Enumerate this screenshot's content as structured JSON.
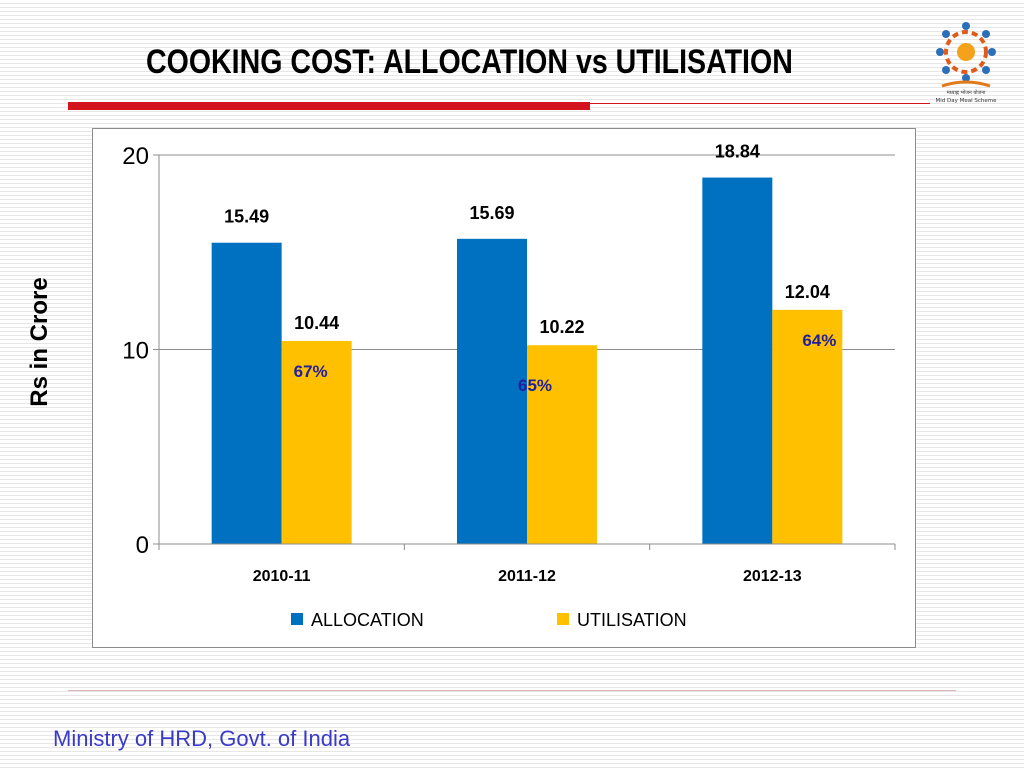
{
  "slide": {
    "title": "COOKING COST: ALLOCATION vs UTILISATION",
    "footer": "Ministry of HRD, Govt. of India",
    "ylabel": "Rs in Crore",
    "logo_caption_1": "मध्याह्न भोजन योजना",
    "logo_caption_2": "Mid Day Meal Scheme"
  },
  "colors": {
    "allocation": "#0070c0",
    "utilisation": "#ffc000",
    "percent_text": "#1f1fa0",
    "title_bar": "#d4141c"
  },
  "chart_data": {
    "type": "bar",
    "categories": [
      "2010-11",
      "2011-12",
      "2012-13"
    ],
    "series": [
      {
        "name": "ALLOCATION",
        "values": [
          15.49,
          15.69,
          18.84
        ],
        "labels": [
          "15.49",
          "15.69",
          "18.84"
        ]
      },
      {
        "name": "UTILISATION",
        "values": [
          10.44,
          10.22,
          12.04
        ],
        "labels": [
          "10.44",
          "10.22",
          "12.04"
        ]
      }
    ],
    "percent_annotations": [
      "67%",
      "65%",
      "64%"
    ],
    "ylabel": "Rs in Crore",
    "ylim": [
      0,
      20
    ],
    "yticks": [
      0,
      10,
      20
    ],
    "grid": true,
    "legend": "bottom"
  }
}
